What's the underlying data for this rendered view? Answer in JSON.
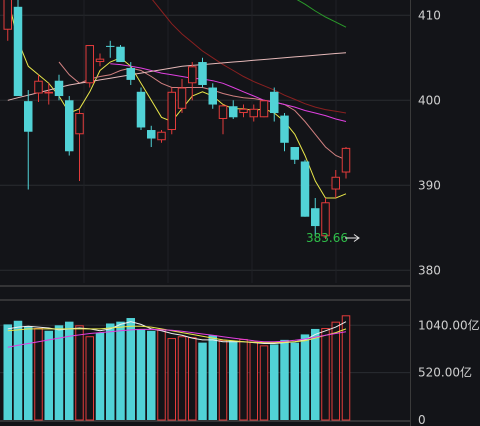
{
  "chart_data": [
    {
      "type": "candlestick",
      "y_ticks": [
        380,
        390,
        400,
        410
      ],
      "y_tick_labels": [
        "380",
        "390",
        "400",
        "410"
      ],
      "ylim": [
        378.5,
        411.8
      ],
      "grid": true,
      "candles": [
        {
          "o": 408.3,
          "h": 412.0,
          "l": 407.0,
          "c": 412.0
        },
        {
          "o": 411.0,
          "h": 412.0,
          "l": 400.5,
          "c": 400.5
        },
        {
          "o": 399.9,
          "h": 401.2,
          "l": 389.5,
          "c": 396.3
        },
        {
          "o": 400.8,
          "h": 403.0,
          "l": 399.8,
          "c": 402.3
        },
        {
          "o": 400.8,
          "h": 402.0,
          "l": 399.5,
          "c": 401.0
        },
        {
          "o": 402.3,
          "h": 403.0,
          "l": 400.0,
          "c": 400.5
        },
        {
          "o": 400.0,
          "h": 400.5,
          "l": 393.5,
          "c": 394.0
        },
        {
          "o": 396.0,
          "h": 399.0,
          "l": 390.5,
          "c": 398.5
        },
        {
          "o": 402.0,
          "h": 406.5,
          "l": 401.5,
          "c": 406.5
        },
        {
          "o": 404.5,
          "h": 405.5,
          "l": 404.0,
          "c": 404.9
        },
        {
          "o": 406.4,
          "h": 407.0,
          "l": 405.0,
          "c": 406.3
        },
        {
          "o": 406.3,
          "h": 406.5,
          "l": 404.5,
          "c": 404.5
        },
        {
          "o": 403.8,
          "h": 404.5,
          "l": 401.8,
          "c": 402.4
        },
        {
          "o": 401.0,
          "h": 401.5,
          "l": 396.5,
          "c": 396.8
        },
        {
          "o": 396.5,
          "h": 397.0,
          "l": 394.5,
          "c": 395.5
        },
        {
          "o": 395.3,
          "h": 396.5,
          "l": 395.0,
          "c": 396.3
        },
        {
          "o": 396.5,
          "h": 401.5,
          "l": 396.0,
          "c": 401.0
        },
        {
          "o": 399.0,
          "h": 402.5,
          "l": 398.5,
          "c": 401.5
        },
        {
          "o": 402.0,
          "h": 404.5,
          "l": 400.0,
          "c": 404.0
        },
        {
          "o": 404.5,
          "h": 405.0,
          "l": 401.5,
          "c": 401.8
        },
        {
          "o": 401.5,
          "h": 402.0,
          "l": 399.0,
          "c": 399.5
        },
        {
          "o": 397.8,
          "h": 399.5,
          "l": 396.0,
          "c": 399.4
        },
        {
          "o": 399.3,
          "h": 400.0,
          "l": 397.8,
          "c": 398.0
        },
        {
          "o": 398.5,
          "h": 399.5,
          "l": 398.0,
          "c": 399.0
        },
        {
          "o": 398.0,
          "h": 399.5,
          "l": 397.5,
          "c": 399.0
        },
        {
          "o": 398.0,
          "h": 400.0,
          "l": 398.0,
          "c": 400.0
        },
        {
          "o": 401.0,
          "h": 401.5,
          "l": 397.5,
          "c": 398.5
        },
        {
          "o": 398.2,
          "h": 398.5,
          "l": 394.0,
          "c": 395.0
        },
        {
          "o": 394.5,
          "h": 394.5,
          "l": 392.5,
          "c": 393.0
        },
        {
          "o": 392.8,
          "h": 393.0,
          "l": 386.3,
          "c": 386.3
        },
        {
          "o": 387.3,
          "h": 388.5,
          "l": 384.0,
          "c": 385.2
        },
        {
          "o": 384.0,
          "h": 388.5,
          "l": 383.66,
          "c": 388.0
        },
        {
          "o": 389.5,
          "h": 391.8,
          "l": 388.5,
          "c": 391.0
        },
        {
          "o": 391.5,
          "h": 394.5,
          "l": 390.8,
          "c": 394.4
        }
      ],
      "moving_averages": [
        {
          "color": "#e8e64a",
          "values": [
            412.0,
            407.0,
            404.0,
            403.0,
            402.0,
            400.5,
            398.5,
            399.0,
            401.0,
            403.5,
            404.5,
            405.0,
            404.0,
            402.0,
            400.0,
            398.0,
            397.5,
            399.0,
            400.5,
            401.0,
            400.5,
            399.5,
            399.0,
            399.0,
            398.8,
            399.0,
            398.5,
            397.5,
            396.0,
            393.5,
            390.5,
            388.5,
            388.5,
            389.0
          ]
        },
        {
          "color": "#d08080",
          "values": [
            null,
            null,
            null,
            null,
            null,
            404.5,
            403.0,
            402.0,
            402.5,
            402.8,
            403.0,
            403.5,
            403.8,
            403.5,
            402.8,
            402.0,
            401.5,
            401.5,
            401.5,
            401.5,
            401.2,
            400.8,
            400.5,
            400.3,
            400.2,
            400.0,
            399.8,
            399.5,
            398.8,
            397.5,
            396.0,
            394.5,
            393.5,
            393.0
          ]
        },
        {
          "color": "#e040e0",
          "values": [
            null,
            null,
            null,
            null,
            null,
            null,
            null,
            null,
            null,
            null,
            404.3,
            404.2,
            404.0,
            403.8,
            403.5,
            403.2,
            403.0,
            402.8,
            402.6,
            402.5,
            402.3,
            402.0,
            401.5,
            401.0,
            400.5,
            400.0,
            399.8,
            399.5,
            399.2,
            398.8,
            398.5,
            398.2,
            397.8,
            397.5
          ]
        },
        {
          "color": "#8a2020",
          "values": [
            null,
            null,
            null,
            null,
            null,
            null,
            null,
            null,
            null,
            null,
            null,
            null,
            416.0,
            414.0,
            412.0,
            410.5,
            409.0,
            407.8,
            406.8,
            405.8,
            405.0,
            404.2,
            403.5,
            402.8,
            402.2,
            401.7,
            401.2,
            400.6,
            400.1,
            399.6,
            399.2,
            398.9,
            398.7,
            398.5
          ]
        },
        {
          "color": "#2a9a2a",
          "values": [
            null,
            null,
            null,
            null,
            null,
            null,
            null,
            null,
            null,
            null,
            null,
            null,
            null,
            null,
            null,
            null,
            null,
            null,
            null,
            null,
            null,
            null,
            null,
            null,
            null,
            null,
            null,
            null,
            412.0,
            411.3,
            410.5,
            409.8,
            409.2,
            408.6
          ]
        },
        {
          "color": "#e5b8b8",
          "values": [
            400.0,
            400.3,
            400.6,
            400.9,
            401.2,
            401.5,
            401.8,
            402.0,
            402.2,
            402.4,
            402.6,
            402.8,
            403.0,
            403.2,
            403.4,
            403.6,
            403.8,
            404.0,
            404.1,
            404.2,
            404.3,
            404.4,
            404.5,
            404.6,
            404.7,
            404.8,
            404.9,
            405.0,
            405.1,
            405.2,
            405.3,
            405.4,
            405.5,
            405.6
          ]
        }
      ],
      "min_annotation": {
        "label": "383.66",
        "value": 383.66
      }
    },
    {
      "type": "bar",
      "y_ticks": [
        0,
        520,
        1040
      ],
      "y_tick_labels": [
        "0",
        "520.00亿",
        "1040.00亿"
      ],
      "ylim": [
        0,
        1285
      ],
      "values": [
        1050,
        1090,
        1030,
        1010,
        980,
        1040,
        1080,
        1040,
        920,
        960,
        1060,
        1080,
        1120,
        1000,
        980,
        1000,
        900,
        920,
        910,
        850,
        930,
        880,
        870,
        890,
        860,
        820,
        830,
        880,
        850,
        940,
        1000,
        1010,
        1080,
        1150
      ],
      "up_down": [
        "d",
        "d",
        "d",
        "u",
        "d",
        "d",
        "d",
        "u",
        "u",
        "d",
        "d",
        "d",
        "d",
        "d",
        "d",
        "u",
        "u",
        "u",
        "u",
        "d",
        "d",
        "u",
        "d",
        "u",
        "u",
        "u",
        "d",
        "d",
        "d",
        "d",
        "d",
        "u",
        "u",
        "u"
      ],
      "moving_averages": [
        {
          "color": "#f0f0f0",
          "values": [
            1000,
            1020,
            1030,
            1020,
            1010,
            990,
            1000,
            1010,
            1000,
            980,
            1000,
            1050,
            1080,
            1050,
            1000,
            980,
            950,
            930,
            900,
            880,
            880,
            860,
            860,
            860,
            850,
            840,
            840,
            850,
            860,
            880,
            940,
            980,
            1020,
            1080
          ]
        },
        {
          "color": "#e8e64a",
          "values": [
            980,
            990,
            1000,
            1000,
            1000,
            1000,
            1000,
            1000,
            1000,
            1000,
            1010,
            1020,
            1030,
            1030,
            1020,
            1000,
            980,
            960,
            940,
            920,
            900,
            880,
            870,
            860,
            855,
            850,
            850,
            855,
            860,
            870,
            900,
            930,
            960,
            1000
          ]
        },
        {
          "color": "#e040e0",
          "values": [
            800,
            820,
            840,
            860,
            880,
            900,
            920,
            935,
            950,
            960,
            970,
            980,
            990,
            995,
            995,
            990,
            985,
            975,
            960,
            945,
            930,
            915,
            900,
            885,
            870,
            860,
            860,
            865,
            875,
            890,
            910,
            930,
            950,
            970
          ]
        }
      ]
    }
  ],
  "colors": {
    "up": "#e23b3b",
    "down": "#51d2d6",
    "grid": "#2a2c31",
    "axis_text": "#cfcfcf",
    "min_text": "#2fbf4a",
    "divider": "#5a5a5a"
  }
}
